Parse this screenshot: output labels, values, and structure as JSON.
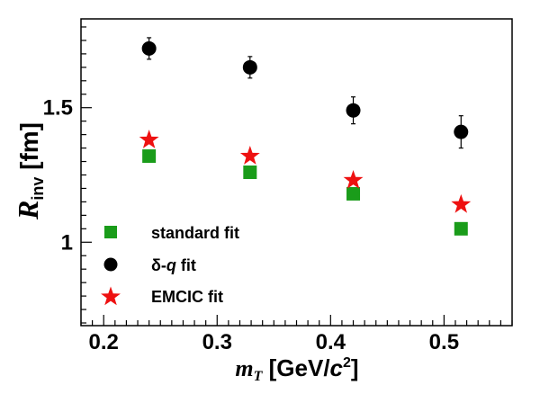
{
  "chart_data": {
    "type": "scatter",
    "title": "",
    "xlabel": {
      "main": "m",
      "sub": "T",
      "units_pre": " [GeV/",
      "units_var": "c",
      "units_sup": "2",
      "units_post": "]"
    },
    "ylabel": {
      "main": "R",
      "sub": "inv",
      "units": " [fm]"
    },
    "xlim": [
      0.18,
      0.56
    ],
    "ylim": [
      0.69,
      1.83
    ],
    "x_ticks": [
      {
        "value": 0.2,
        "label": "0.2"
      },
      {
        "value": 0.3,
        "label": "0.3"
      },
      {
        "value": 0.4,
        "label": "0.4"
      },
      {
        "value": 0.5,
        "label": "0.5"
      }
    ],
    "y_ticks": [
      {
        "value": 1.0,
        "label": "1"
      },
      {
        "value": 1.5,
        "label": "1.5"
      }
    ],
    "grid": false,
    "legend_position": "bottom-left",
    "series": [
      {
        "name": "standard fit",
        "marker": "square",
        "color": "#1a9c1a",
        "points": [
          {
            "x": 0.24,
            "y": 1.32
          },
          {
            "x": 0.329,
            "y": 1.26
          },
          {
            "x": 0.42,
            "y": 1.18
          },
          {
            "x": 0.515,
            "y": 1.05
          }
        ]
      },
      {
        "name_parts": [
          "δ-",
          "q",
          " fit"
        ],
        "marker": "circle",
        "color": "#000000",
        "points": [
          {
            "x": 0.24,
            "y": 1.72,
            "err": 0.04
          },
          {
            "x": 0.329,
            "y": 1.65,
            "err": 0.04
          },
          {
            "x": 0.42,
            "y": 1.49,
            "err": 0.05
          },
          {
            "x": 0.515,
            "y": 1.41,
            "err": 0.06
          }
        ]
      },
      {
        "name": "EMCIC fit",
        "marker": "star",
        "color": "#ee1111",
        "points": [
          {
            "x": 0.24,
            "y": 1.38
          },
          {
            "x": 0.329,
            "y": 1.32
          },
          {
            "x": 0.42,
            "y": 1.23
          },
          {
            "x": 0.515,
            "y": 1.14
          }
        ]
      }
    ]
  }
}
